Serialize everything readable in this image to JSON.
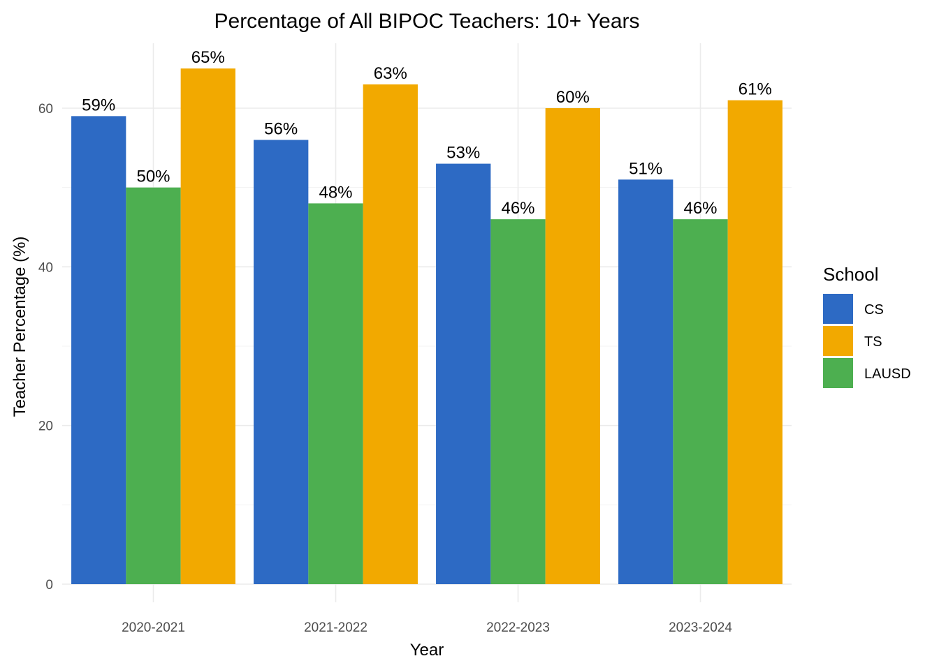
{
  "chart_data": {
    "type": "bar",
    "title": "Percentage of All BIPOC Teachers: 10+ Years",
    "xlabel": "Year",
    "ylabel": "Teacher Percentage (%)",
    "categories": [
      "2020-2021",
      "2021-2022",
      "2022-2023",
      "2023-2024"
    ],
    "series": [
      {
        "name": "CS",
        "color": "#2D6AC4",
        "values": [
          59,
          56,
          53,
          51
        ]
      },
      {
        "name": "LAUSD",
        "color": "#4DAF50",
        "values": [
          50,
          48,
          46,
          46
        ]
      },
      {
        "name": "TS",
        "color": "#F2A900",
        "values": [
          65,
          63,
          60,
          61
        ]
      }
    ],
    "value_suffix": "%",
    "ylim": [
      0,
      68
    ],
    "yticks": [
      0,
      20,
      40,
      60
    ],
    "grid": true,
    "legend": {
      "title": "School",
      "placement": "right",
      "order": [
        "CS",
        "TS",
        "LAUSD"
      ]
    }
  }
}
